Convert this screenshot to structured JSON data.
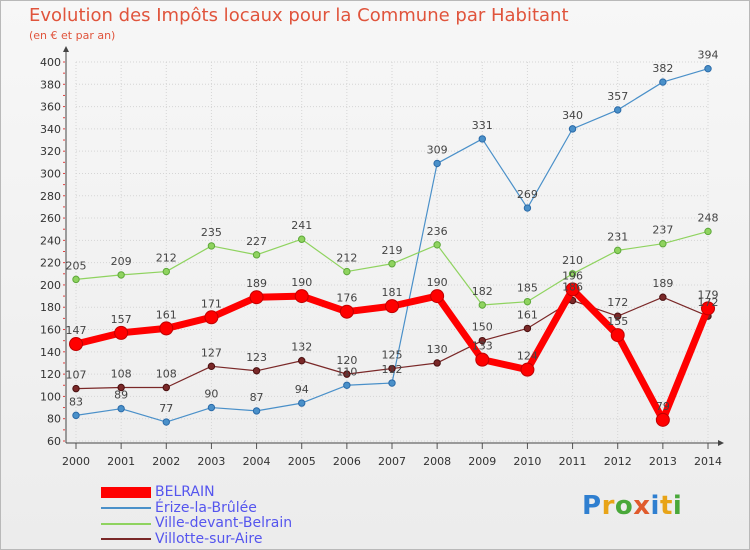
{
  "title": "Evolution des Impôts locaux pour la Commune par Habitant",
  "subtitle": "(en € et par an)",
  "logo_text": "Proxiti",
  "chart_data": {
    "type": "line",
    "title": "Evolution des Impôts locaux pour la Commune par Habitant",
    "subtitle": "(en € et par an)",
    "xlabel": "",
    "ylabel": "",
    "x": [
      "2000",
      "2001",
      "2002",
      "2003",
      "2004",
      "2005",
      "2006",
      "2007",
      "2008",
      "2009",
      "2010",
      "2011",
      "2012",
      "2013",
      "2014"
    ],
    "ylim": [
      60,
      400
    ],
    "yticks": [
      60,
      80,
      100,
      120,
      140,
      160,
      180,
      200,
      220,
      240,
      260,
      280,
      300,
      320,
      340,
      360,
      380,
      400
    ],
    "legend_position": "bottom-left",
    "series": [
      {
        "name": "BELRAIN",
        "color": "#ff0000",
        "values": [
          147,
          157,
          161,
          171,
          189,
          190,
          176,
          181,
          190,
          133,
          124,
          196,
          155,
          79,
          179
        ]
      },
      {
        "name": "Érize-la-Brûlée",
        "color": "#4a90c9",
        "values": [
          83,
          89,
          77,
          90,
          87,
          94,
          110,
          112,
          309,
          331,
          269,
          340,
          357,
          382,
          394
        ]
      },
      {
        "name": "Ville-devant-Belrain",
        "color": "#8fd35f",
        "values": [
          205,
          209,
          212,
          235,
          227,
          241,
          212,
          219,
          236,
          182,
          185,
          210,
          231,
          237,
          248
        ]
      },
      {
        "name": "Villotte-sur-Aire",
        "color": "#7a2828",
        "values": [
          107,
          108,
          108,
          127,
          123,
          132,
          120,
          125,
          130,
          150,
          161,
          186,
          172,
          189,
          172
        ]
      }
    ]
  }
}
